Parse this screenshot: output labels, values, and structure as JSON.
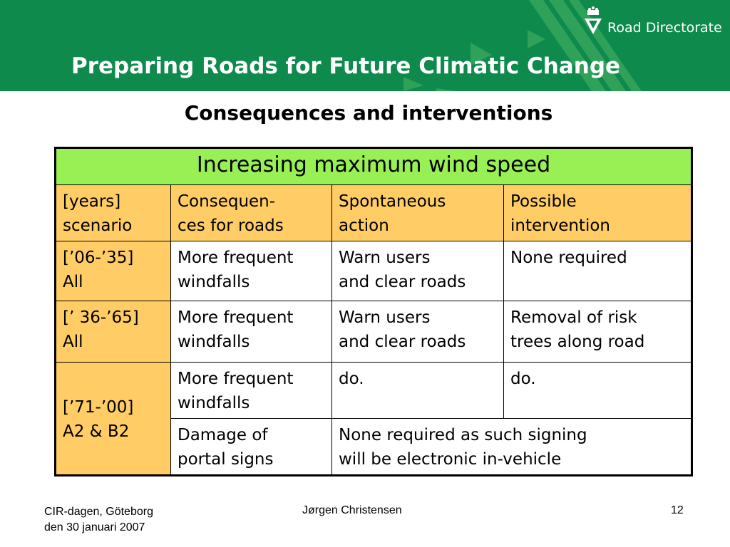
{
  "header": {
    "title": "Preparing Roads for Future Climatic Change",
    "logo_text": "Road Directorate"
  },
  "subtitle": "Consequences and interventions",
  "table": {
    "title": "Increasing maximum wind speed",
    "columns": [
      [
        "[years]",
        "scenario"
      ],
      [
        "Consequen-",
        "ces for roads"
      ],
      [
        "Spontaneous",
        "action"
      ],
      [
        "Possible",
        "intervention"
      ]
    ],
    "rows": [
      {
        "scenario": [
          "[’06-’35]",
          "All"
        ],
        "consequence": [
          "More frequent",
          "windfalls"
        ],
        "action": [
          "Warn users",
          "and clear roads"
        ],
        "intervention": [
          "None required"
        ]
      },
      {
        "scenario": [
          "[’ 36-’65]",
          "All"
        ],
        "consequence": [
          "More frequent",
          "windfalls"
        ],
        "action": [
          "Warn users",
          "and clear roads"
        ],
        "intervention": [
          "Removal of risk",
          "trees along road"
        ]
      },
      {
        "scenario": [
          "[’71-’00]",
          "A2 & B2"
        ],
        "consequence": [
          "More frequent",
          "windfalls"
        ],
        "action": [
          "do."
        ],
        "intervention": [
          "do."
        ]
      },
      {
        "consequence": [
          "Damage of",
          "portal signs"
        ],
        "combined": [
          "None required as such signing",
          "will be electronic in-vehicle"
        ]
      }
    ]
  },
  "footer": {
    "left": [
      "CIR-dagen, Göteborg",
      "den 30 januari 2007"
    ],
    "center": "Jørgen Christensen",
    "page": "12"
  },
  "colors": {
    "header_green": "#0e8a4c",
    "table_title_green": "#99f055",
    "header_orange": "#ffcc66"
  }
}
